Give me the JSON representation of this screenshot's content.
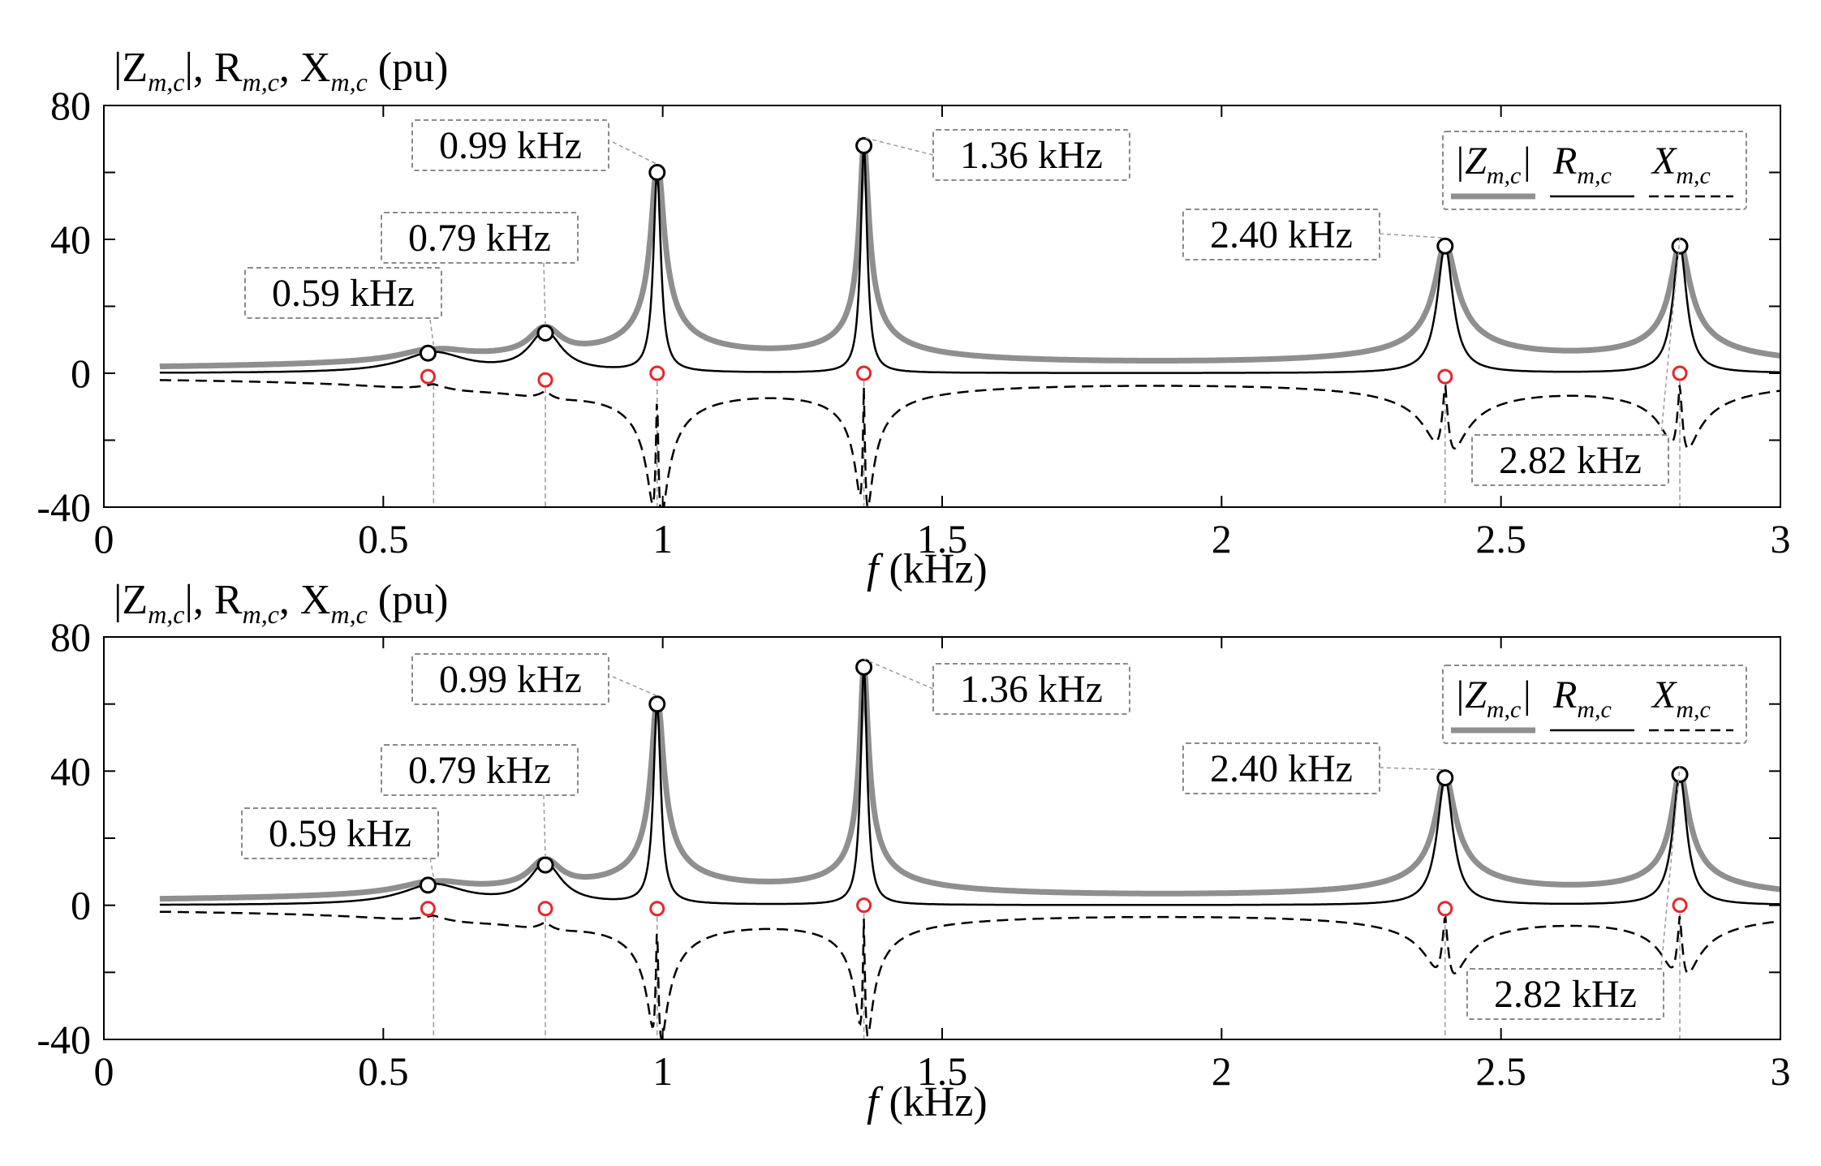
{
  "figure": {
    "legend": {
      "entries": [
        {
          "name": "|Z_m,c|",
          "label_main": "|Z",
          "label_sub": "m,c",
          "label_tail": "|",
          "color": "#8f8f8f",
          "style": "solid-thick"
        },
        {
          "name": "R_m,c",
          "label_main": "R",
          "label_sub": "m,c",
          "label_tail": "",
          "color": "#000000",
          "style": "solid"
        },
        {
          "name": "X_m,c",
          "label_main": "X",
          "label_sub": "m,c",
          "label_tail": "",
          "color": "#000000",
          "style": "dashed"
        }
      ]
    }
  },
  "chart_data": [
    {
      "type": "line",
      "panel": "top",
      "ylabel": {
        "parts": [
          "|Z",
          "m,c",
          "|, R",
          "m,c",
          ", X",
          "m,c",
          " (pu)"
        ]
      },
      "xlabel": {
        "f": "f",
        "unit": " (kHz)"
      },
      "xlim": [
        0,
        3
      ],
      "ylim": [
        -40,
        80
      ],
      "xticks": [
        0,
        0.5,
        1,
        1.5,
        2,
        2.5,
        3
      ],
      "xtick_labels": [
        "0",
        "0.5",
        "1",
        "1.5",
        "2",
        "2.5",
        "3"
      ],
      "yticks": [
        -40,
        0,
        40,
        80
      ],
      "ytick_labels": [
        "-40",
        "0",
        "40",
        "80"
      ],
      "grid": false,
      "series": [
        {
          "name": "|Z_m,c|",
          "color": "#8f8f8f"
        },
        {
          "name": "R_m,c",
          "color": "#000000"
        },
        {
          "name": "X_m,c",
          "color": "#000000"
        }
      ],
      "resonances": [
        {
          "f": 0.59,
          "peak": 6,
          "x_min": -1.5,
          "width": 0.07,
          "label": "0.59 kHz"
        },
        {
          "f": 0.79,
          "peak": 12,
          "x_min": -2,
          "width": 0.035,
          "label": "0.79 kHz"
        },
        {
          "f": 0.99,
          "peak": 60,
          "x_min": -40,
          "width": 0.008,
          "label": "0.99 kHz"
        },
        {
          "f": 1.36,
          "peak": 68,
          "x_min": -37,
          "width": 0.007,
          "label": "1.36 kHz"
        },
        {
          "f": 2.4,
          "peak": 38,
          "x_min": -20,
          "width": 0.017,
          "label": "2.40 kHz"
        },
        {
          "f": 2.82,
          "peak": 38,
          "x_min": -20,
          "width": 0.015,
          "label": "2.82 kHz"
        }
      ],
      "peak_markers": [
        {
          "f": 0.58,
          "value": 6
        },
        {
          "f": 0.79,
          "value": 12
        },
        {
          "f": 0.99,
          "value": 60
        },
        {
          "f": 1.36,
          "value": 68
        },
        {
          "f": 2.4,
          "value": 38
        },
        {
          "f": 2.82,
          "value": 38
        }
      ],
      "zero_markers": [
        {
          "f": 0.58,
          "value": -1
        },
        {
          "f": 0.79,
          "value": -2
        },
        {
          "f": 0.99,
          "value": 0
        },
        {
          "f": 1.36,
          "value": 0
        },
        {
          "f": 2.4,
          "value": -1
        },
        {
          "f": 2.82,
          "value": 0
        }
      ],
      "f_start": 0.1,
      "f_end": 3
    },
    {
      "type": "line",
      "panel": "bottom",
      "ylabel": {
        "parts": [
          "|Z",
          "m,c",
          "|, R",
          "m,c",
          ", X",
          "m,c",
          " (pu)"
        ]
      },
      "xlabel": {
        "f": "f",
        "unit": " (kHz)"
      },
      "xlim": [
        0,
        3
      ],
      "ylim": [
        -40,
        80
      ],
      "xticks": [
        0,
        0.5,
        1,
        1.5,
        2,
        2.5,
        3
      ],
      "xtick_labels": [
        "0",
        "0.5",
        "1",
        "1.5",
        "2",
        "2.5",
        "3"
      ],
      "yticks": [
        -40,
        0,
        40,
        80
      ],
      "ytick_labels": [
        "-40",
        "0",
        "40",
        "80"
      ],
      "grid": false,
      "series": [
        {
          "name": "|Z_m,c|",
          "color": "#8f8f8f"
        },
        {
          "name": "R_m,c",
          "color": "#000000"
        },
        {
          "name": "X_m,c",
          "color": "#000000"
        }
      ],
      "resonances": [
        {
          "f": 0.59,
          "peak": 6,
          "x_min": -1.5,
          "width": 0.07,
          "label": "0.59 kHz"
        },
        {
          "f": 0.79,
          "peak": 12,
          "x_min": -2,
          "width": 0.035,
          "label": "0.79 kHz"
        },
        {
          "f": 0.99,
          "peak": 60,
          "x_min": -37,
          "width": 0.008,
          "label": "0.99 kHz"
        },
        {
          "f": 1.36,
          "peak": 71,
          "x_min": -36,
          "width": 0.007,
          "label": "1.36 kHz"
        },
        {
          "f": 2.4,
          "peak": 38,
          "x_min": -18,
          "width": 0.017,
          "label": "2.40 kHz"
        },
        {
          "f": 2.82,
          "peak": 39,
          "x_min": -18,
          "width": 0.015,
          "label": "2.82 kHz"
        }
      ],
      "peak_markers": [
        {
          "f": 0.58,
          "value": 6
        },
        {
          "f": 0.79,
          "value": 12
        },
        {
          "f": 0.99,
          "value": 60
        },
        {
          "f": 1.36,
          "value": 71
        },
        {
          "f": 2.4,
          "value": 38
        },
        {
          "f": 2.82,
          "value": 39
        }
      ],
      "zero_markers": [
        {
          "f": 0.58,
          "value": -1
        },
        {
          "f": 0.79,
          "value": -1
        },
        {
          "f": 0.99,
          "value": -1
        },
        {
          "f": 1.36,
          "value": 0
        },
        {
          "f": 2.4,
          "value": -1
        },
        {
          "f": 2.82,
          "value": 0
        }
      ],
      "f_start": 0.1,
      "f_end": 3
    }
  ]
}
